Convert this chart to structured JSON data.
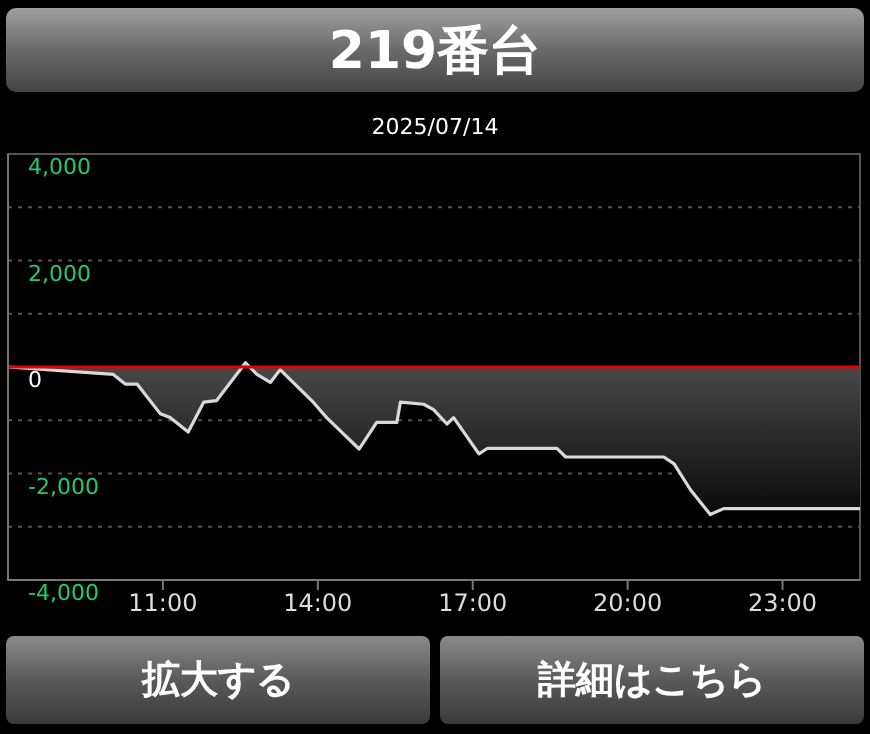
{
  "chart_data": {
    "type": "area",
    "title": "219番台",
    "subtitle": "2025/07/14",
    "annotations": [
      "拡大する",
      "詳細はこちら"
    ],
    "x": [
      8,
      10.04,
      10.27,
      10.5,
      10.95,
      11.14,
      11.49,
      11.79,
      12.04,
      12.6,
      12.82,
      13.08,
      13.27,
      13.92,
      14.17,
      14.8,
      15.14,
      15.53,
      15.6,
      16.05,
      16.24,
      16.5,
      16.63,
      17.12,
      17.28,
      18.63,
      18.8,
      20.7,
      20.9,
      21.22,
      21.6,
      21.86,
      24.5
    ],
    "series": [
      {
        "color": "#d9d9d9",
        "values": [
          0,
          -140,
          -320,
          -320,
          -880,
          -950,
          -1220,
          -660,
          -630,
          80,
          -140,
          -290,
          -50,
          -670,
          -950,
          -1540,
          -1040,
          -1040,
          -660,
          -700,
          -800,
          -1070,
          -950,
          -1630,
          -1530,
          -1530,
          -1690,
          -1690,
          -1820,
          -2310,
          -2770,
          -2660,
          -2660
        ]
      }
    ],
    "xlim": [
      8,
      24.5
    ],
    "xticks": [
      {
        "value": 11,
        "label": "11:00"
      },
      {
        "value": 14,
        "label": "14:00"
      },
      {
        "value": 17,
        "label": "17:00"
      },
      {
        "value": 20,
        "label": "20:00"
      },
      {
        "value": 23,
        "label": "23:00"
      }
    ],
    "ylim": [
      -4000,
      4000
    ],
    "yticks": [
      {
        "value": -4000,
        "label": "-4,000"
      },
      {
        "value": -3000,
        "label": null
      },
      {
        "value": -2000,
        "label": "-2,000"
      },
      {
        "value": -1000,
        "label": null
      },
      {
        "value": 0,
        "label": "0"
      },
      {
        "value": 1000,
        "label": null
      },
      {
        "value": 2000,
        "label": "2,000"
      },
      {
        "value": 3000,
        "label": null
      },
      {
        "value": 4000,
        "label": "4,000"
      }
    ],
    "ref_lines": [
      {
        "axis": "y",
        "value": 0,
        "color": "#e00000"
      }
    ],
    "grid": "y",
    "marker": "none",
    "line_style": "solid"
  }
}
